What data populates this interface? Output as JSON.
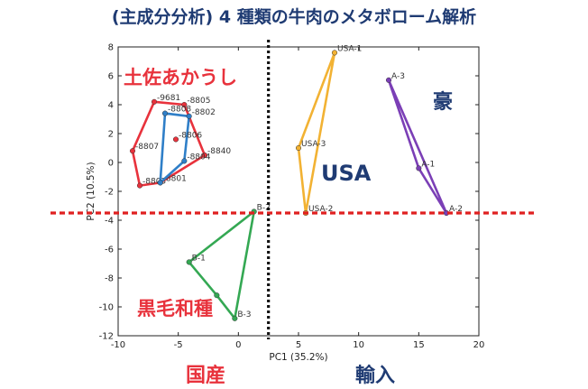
{
  "page_title": "(主成分分析) 4 種類の牛肉のメタボローム解析",
  "annotations": {
    "tosa": "土佐あかうし",
    "kuroge": "黒毛和種",
    "usa": "USA",
    "gou": "豪",
    "domestic": "国産",
    "import": "輸入"
  },
  "colors": {
    "tosa": "#e8323c",
    "tosa_inner": "#2f7fc8",
    "kuroge": "#34a853",
    "usa": "#f2b233",
    "gou": "#7b3fb6",
    "divider_red": "#e02020",
    "divider_black": "#111111",
    "navy": "#1f3b73"
  },
  "chart_data": {
    "type": "scatter",
    "xlabel": "PC1 (35.2%)",
    "ylabel": "PC2 (10.5%)",
    "xlim": [
      -10,
      20
    ],
    "ylim": [
      -12,
      8
    ],
    "xticks": [
      -10,
      -5,
      0,
      5,
      10,
      15,
      20
    ],
    "yticks": [
      -12,
      -10,
      -8,
      -6,
      -4,
      -2,
      0,
      2,
      4,
      6,
      8
    ],
    "divider_x": 2.5,
    "divider_y": -3.5,
    "series": [
      {
        "key": "tosa_outer",
        "color_key": "tosa",
        "closed": true,
        "points": [
          {
            "label": "-9681",
            "x": -7,
            "y": 4.2
          },
          {
            "label": "-8805",
            "x": -4.5,
            "y": 4.0
          },
          {
            "label": "-8840",
            "x": -2.8,
            "y": 0.5
          },
          {
            "label": "-8801",
            "x": -6.5,
            "y": -1.4
          },
          {
            "label": "-8803",
            "x": -8.2,
            "y": -1.6
          },
          {
            "label": "-8807",
            "x": -8.8,
            "y": 0.8
          }
        ]
      },
      {
        "key": "tosa_inner",
        "color_key": "tosa_inner",
        "closed": true,
        "points": [
          {
            "label": "-8808",
            "x": -6.1,
            "y": 3.4
          },
          {
            "label": "-8802",
            "x": -4.1,
            "y": 3.2
          },
          {
            "label": "-8804",
            "x": -4.5,
            "y": 0.1
          },
          {
            "label": "",
            "x": -6.5,
            "y": -1.4
          }
        ]
      },
      {
        "key": "tosa_extra",
        "color_key": "tosa",
        "closed": false,
        "points": [
          {
            "label": "-8806",
            "x": -5.2,
            "y": 1.6
          }
        ]
      },
      {
        "key": "kuroge",
        "color_key": "kuroge",
        "closed": true,
        "points": [
          {
            "label": "B-2",
            "x": 1.3,
            "y": -3.4
          },
          {
            "label": "B-1",
            "x": -4.1,
            "y": -6.9
          },
          {
            "label": "",
            "x": -1.8,
            "y": -9.2
          },
          {
            "label": "B-3",
            "x": -0.3,
            "y": -10.8
          }
        ]
      },
      {
        "key": "usa",
        "color_key": "usa",
        "closed": true,
        "points": [
          {
            "label": "USA-1",
            "x": 8.0,
            "y": 7.6
          },
          {
            "label": "USA-3",
            "x": 5.0,
            "y": 1.0
          },
          {
            "label": "USA-2",
            "x": 5.6,
            "y": -3.5
          }
        ]
      },
      {
        "key": "gou",
        "color_key": "gou",
        "closed": true,
        "points": [
          {
            "label": "A-3",
            "x": 12.5,
            "y": 5.7
          },
          {
            "label": "A-1",
            "x": 15.0,
            "y": -0.4
          },
          {
            "label": "A-2",
            "x": 17.3,
            "y": -3.5
          }
        ]
      }
    ]
  }
}
